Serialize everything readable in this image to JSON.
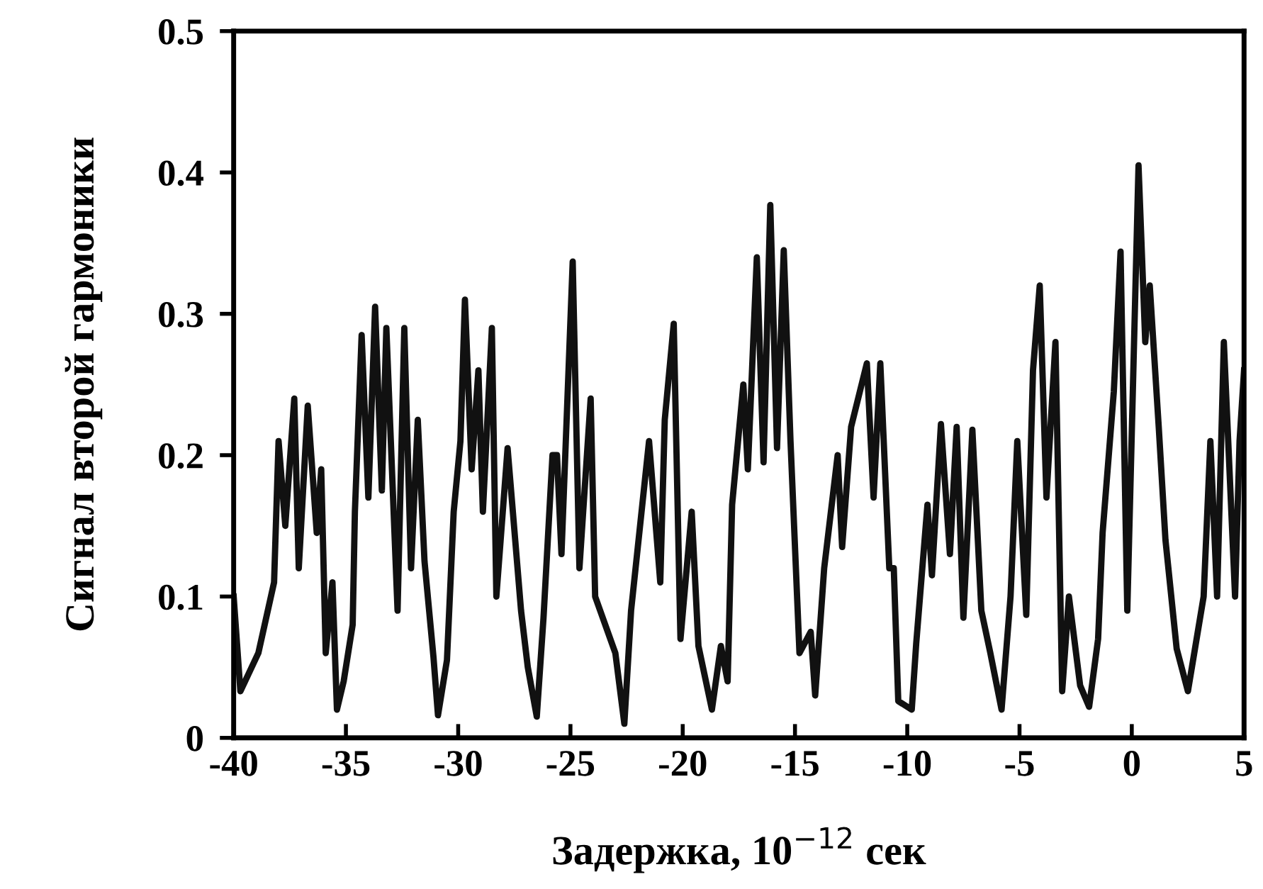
{
  "chart_data": {
    "type": "line",
    "xlabel": "Задержка, 10$^{−12}$ сек",
    "ylabel": "Сигнал второй гармоники",
    "xlim": [
      -40,
      5
    ],
    "xticks": [
      -40,
      -35,
      -30,
      -25,
      -20,
      -15,
      -10,
      -5,
      0,
      5
    ],
    "ylim": [
      0,
      0.5
    ],
    "yticks": [
      0,
      0.1,
      0.2,
      0.3,
      0.4,
      0.5
    ],
    "grid": false,
    "legend": false,
    "marker": "none",
    "line_style": "solid",
    "series": [
      {
        "color": "#111111",
        "x": [
          -40,
          -39.7,
          -38.9,
          -38.2,
          -38.0,
          -37.7,
          -37.3,
          -37.1,
          -36.7,
          -36.3,
          -36.1,
          -35.9,
          -35.6,
          -35.4,
          -35.1,
          -34.7,
          -34.6,
          -34.3,
          -34.0,
          -33.7,
          -33.4,
          -33.2,
          -32.7,
          -32.4,
          -32.1,
          -31.8,
          -31.5,
          -31.1,
          -30.9,
          -30.5,
          -30.2,
          -29.9,
          -29.7,
          -29.4,
          -29.1,
          -28.9,
          -28.5,
          -28.3,
          -27.8,
          -27.2,
          -26.9,
          -26.5,
          -26.2,
          -25.8,
          -25.6,
          -25.4,
          -24.9,
          -24.6,
          -24.1,
          -23.9,
          -23.0,
          -22.6,
          -22.3,
          -22.0,
          -21.5,
          -21.0,
          -20.8,
          -20.4,
          -20.1,
          -19.6,
          -19.3,
          -18.7,
          -18.3,
          -18.0,
          -17.8,
          -17.3,
          -17.1,
          -16.7,
          -16.4,
          -16.1,
          -15.8,
          -15.5,
          -15.2,
          -14.8,
          -14.3,
          -14.1,
          -13.7,
          -13.1,
          -12.9,
          -12.5,
          -11.8,
          -11.5,
          -11.2,
          -10.8,
          -10.6,
          -10.4,
          -9.8,
          -9.6,
          -9.1,
          -8.9,
          -8.5,
          -8.1,
          -7.8,
          -7.5,
          -7.1,
          -6.7,
          -6.3,
          -5.8,
          -5.4,
          -5.1,
          -4.7,
          -4.4,
          -4.1,
          -3.8,
          -3.4,
          -3.1,
          -2.8,
          -2.3,
          -1.9,
          -1.5,
          -1.3,
          -0.8,
          -0.5,
          -0.2,
          0.3,
          0.6,
          0.8,
          1.2,
          1.5,
          2.0,
          2.5,
          3.2,
          3.5,
          3.8,
          4.1,
          4.6,
          4.8,
          5.0
        ],
        "values": [
          0.1,
          0.033,
          0.06,
          0.11,
          0.21,
          0.15,
          0.24,
          0.12,
          0.235,
          0.145,
          0.19,
          0.06,
          0.11,
          0.02,
          0.04,
          0.08,
          0.16,
          0.285,
          0.17,
          0.305,
          0.175,
          0.29,
          0.09,
          0.29,
          0.12,
          0.225,
          0.125,
          0.057,
          0.016,
          0.055,
          0.16,
          0.21,
          0.31,
          0.19,
          0.26,
          0.16,
          0.29,
          0.1,
          0.205,
          0.09,
          0.05,
          0.015,
          0.085,
          0.2,
          0.2,
          0.13,
          0.337,
          0.12,
          0.24,
          0.1,
          0.06,
          0.01,
          0.09,
          0.135,
          0.21,
          0.11,
          0.225,
          0.293,
          0.07,
          0.16,
          0.065,
          0.02,
          0.065,
          0.04,
          0.165,
          0.25,
          0.19,
          0.34,
          0.195,
          0.377,
          0.205,
          0.345,
          0.21,
          0.06,
          0.075,
          0.03,
          0.12,
          0.2,
          0.135,
          0.22,
          0.265,
          0.17,
          0.265,
          0.12,
          0.12,
          0.026,
          0.02,
          0.067,
          0.165,
          0.115,
          0.222,
          0.13,
          0.22,
          0.085,
          0.218,
          0.09,
          0.06,
          0.02,
          0.1,
          0.21,
          0.087,
          0.26,
          0.32,
          0.17,
          0.28,
          0.033,
          0.1,
          0.037,
          0.022,
          0.07,
          0.145,
          0.245,
          0.344,
          0.09,
          0.405,
          0.28,
          0.32,
          0.22,
          0.14,
          0.063,
          0.033,
          0.1,
          0.21,
          0.1,
          0.28,
          0.1,
          0.21,
          0.26
        ]
      }
    ]
  }
}
